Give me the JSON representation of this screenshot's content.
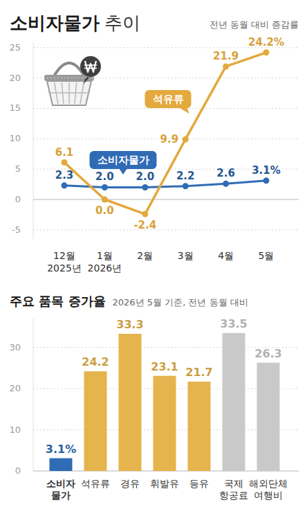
{
  "chart_data": [
    {
      "type": "line",
      "title": "소비자물가 추이",
      "subtitle": "전년 동월 대비 증감률",
      "categories": [
        "12월\n2025년",
        "1월\n2026년",
        "2월",
        "3월",
        "4월",
        "5월"
      ],
      "series": [
        {
          "name": "석유류",
          "color": "#e3a93c",
          "marker": "circle",
          "values": [
            6.1,
            0.0,
            -2.4,
            9.9,
            21.9,
            24.2
          ],
          "value_labels": [
            "6.1",
            "0.0",
            "-2.4",
            "9.9",
            "21.9",
            "24.2%"
          ]
        },
        {
          "name": "소비자물가",
          "color": "#2f6cb5",
          "marker": "circle",
          "values": [
            2.3,
            2.0,
            2.0,
            2.2,
            2.6,
            3.1
          ],
          "value_labels": [
            "2.3",
            "2.0",
            "2.0",
            "2.2",
            "2.6",
            "3.1%"
          ]
        }
      ],
      "ylim": [
        -6.5,
        26
      ],
      "yticks": [
        -5,
        0,
        5,
        10,
        15,
        20,
        25
      ],
      "grid": true,
      "data_labels": true
    },
    {
      "type": "bar",
      "title": "주요 품목 증가율",
      "subtitle": "2026년 5월 기준, 전년 동월 대비",
      "categories": [
        "소비자\n물가",
        "석유류",
        "경유",
        "휘발유",
        "등유",
        "국제\n항공료",
        "해외단체\n여행비"
      ],
      "values": [
        3.1,
        24.2,
        33.3,
        23.1,
        21.7,
        33.5,
        26.3
      ],
      "value_labels": [
        "3.1%",
        "24.2",
        "33.3",
        "23.1",
        "21.7",
        "33.5",
        "26.3"
      ],
      "colors": [
        "#2f6cb5",
        "#e6b44c",
        "#e6b44c",
        "#e6b44c",
        "#e6b44c",
        "#c9c9c9",
        "#c9c9c9"
      ],
      "ylim": [
        0,
        37
      ],
      "yticks": [
        0,
        10,
        20,
        30
      ],
      "grid": true,
      "data_labels": true
    }
  ]
}
